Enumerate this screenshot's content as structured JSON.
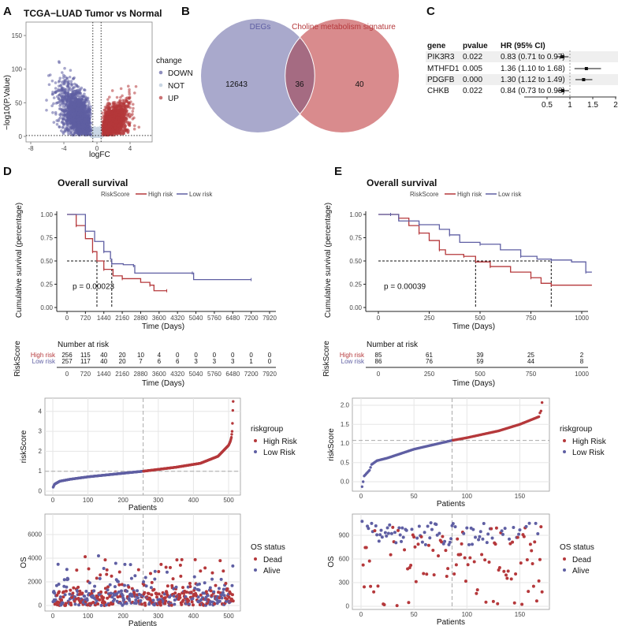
{
  "colors": {
    "low": "#5f5fa3",
    "high": "#b5383b",
    "not": "#c9d6e3",
    "venn_left": "#a9a9cc",
    "venn_right": "#d98b8d",
    "venn_overlap": "#a56b82",
    "band": "#efefef"
  },
  "panels": {
    "A": "A",
    "B": "B",
    "C": "C",
    "D": "D",
    "E": "E"
  },
  "chart_data": [
    {
      "id": "A",
      "type": "scatter",
      "title": "TCGA−LUAD Tumor vs Normal",
      "xlabel": "logFC",
      "ylabel": "−log10(P.Value)",
      "xticks": [
        "-8",
        "-4",
        "0",
        "4"
      ],
      "yticks": [
        "0",
        "50",
        "100",
        "150"
      ],
      "xlim": [
        -8.5,
        6.5
      ],
      "ylim": [
        -5,
        170
      ],
      "thresholds": {
        "logFC": [
          -0.5,
          0.5
        ],
        "neglog10p": 1.3
      },
      "legend": {
        "title": "change",
        "items": [
          "DOWN",
          "NOT",
          "UP"
        ]
      }
    },
    {
      "id": "B",
      "type": "venn",
      "sets": [
        "DEGs",
        "Choline metabolism signature"
      ],
      "counts": {
        "left_only": "12643",
        "overlap": "36",
        "right_only": "40"
      }
    },
    {
      "id": "C",
      "type": "forest",
      "headers": [
        "gene",
        "pvalue",
        "HR (95% CI)"
      ],
      "rows": [
        {
          "gene": "PIK3R3",
          "pvalue": "0.022",
          "hr_text": "0.83 (0.71 to 0.97)",
          "hr": 0.83,
          "lo": 0.71,
          "hi": 0.97
        },
        {
          "gene": "MTHFD1",
          "pvalue": "0.005",
          "hr_text": "1.36 (1.10 to 1.68)",
          "hr": 1.36,
          "lo": 1.1,
          "hi": 1.68
        },
        {
          "gene": "PDGFB",
          "pvalue": "0.000",
          "hr_text": "1.30 (1.12 to 1.49)",
          "hr": 1.3,
          "lo": 1.12,
          "hi": 1.49
        },
        {
          "gene": "CHKB",
          "pvalue": "0.022",
          "hr_text": "0.84 (0.73 to 0.98)",
          "hr": 0.84,
          "lo": 0.73,
          "hi": 0.98
        }
      ],
      "xticks": [
        "0.5",
        "1",
        "1.5",
        "2"
      ],
      "xlim": [
        0.5,
        2
      ],
      "reference": 1
    },
    {
      "id": "D-km",
      "type": "line",
      "title": "Overall survival",
      "legend_title": "RiskScore",
      "legend": [
        "High risk",
        "Low risk"
      ],
      "xlabel": "Time (Days)",
      "ylabel": "Cumulative survival (percentage)",
      "xticks": [
        "0",
        "720",
        "1440",
        "2160",
        "2880",
        "3600",
        "4320",
        "5040",
        "5760",
        "6480",
        "7200",
        "7920"
      ],
      "yticks": [
        "0.00",
        "0.25",
        "0.50",
        "0.75",
        "1.00"
      ],
      "xlim": [
        0,
        7920
      ],
      "ylim": [
        0,
        1
      ],
      "pvalue": "p = 0.00023",
      "medians": [
        1170,
        1750
      ],
      "series": [
        {
          "name": "High risk",
          "x": [
            0,
            360,
            720,
            1000,
            1170,
            1440,
            1800,
            2160,
            2880,
            3240,
            3400,
            3900
          ],
          "y": [
            1,
            0.88,
            0.74,
            0.6,
            0.5,
            0.41,
            0.34,
            0.31,
            0.27,
            0.24,
            0.18,
            0.18
          ]
        },
        {
          "name": "Low risk",
          "x": [
            0,
            720,
            1080,
            1440,
            1700,
            1750,
            2200,
            2600,
            2650,
            4900,
            4950,
            7200
          ],
          "y": [
            1,
            0.82,
            0.71,
            0.6,
            0.52,
            0.47,
            0.46,
            0.45,
            0.37,
            0.37,
            0.3,
            0.3
          ]
        }
      ],
      "risk_table": {
        "title": "Number at risk",
        "ylabel": "RiskScore",
        "xlabel": "Time (Days)",
        "rows": [
          {
            "name": "High risk",
            "values": [
              "256",
              "115",
              "40",
              "20",
              "10",
              "4",
              "0",
              "0",
              "0",
              "0",
              "0",
              "0"
            ]
          },
          {
            "name": "Low risk",
            "values": [
              "257",
              "117",
              "40",
              "20",
              "7",
              "6",
              "6",
              "3",
              "3",
              "3",
              "1",
              "0"
            ]
          }
        ]
      }
    },
    {
      "id": "E-km",
      "type": "line",
      "title": "Overall survival",
      "legend_title": "RiskScore",
      "legend": [
        "High risk",
        "Low risk"
      ],
      "xlabel": "Time (Days)",
      "ylabel": "Cumulative survival (percentage)",
      "xticks": [
        "0",
        "250",
        "500",
        "750",
        "1000"
      ],
      "yticks": [
        "0.00",
        "0.25",
        "0.50",
        "0.75",
        "1.00"
      ],
      "xlim": [
        0,
        1050
      ],
      "ylim": [
        0,
        1
      ],
      "pvalue": "p = 0.00039",
      "medians": [
        478,
        850
      ],
      "series": [
        {
          "name": "High risk",
          "x": [
            0,
            100,
            150,
            200,
            250,
            300,
            330,
            420,
            478,
            550,
            650,
            750,
            800,
            850,
            1050
          ],
          "y": [
            1,
            0.96,
            0.88,
            0.8,
            0.72,
            0.62,
            0.57,
            0.55,
            0.49,
            0.44,
            0.38,
            0.32,
            0.26,
            0.24,
            0.24
          ]
        },
        {
          "name": "Low risk",
          "x": [
            0,
            60,
            100,
            200,
            300,
            350,
            400,
            500,
            600,
            700,
            780,
            850,
            950,
            1020,
            1050
          ],
          "y": [
            1,
            1,
            0.93,
            0.89,
            0.84,
            0.78,
            0.7,
            0.68,
            0.62,
            0.55,
            0.52,
            0.51,
            0.49,
            0.38,
            0.38
          ]
        }
      ],
      "risk_table": {
        "title": "Number at risk",
        "ylabel": "RiskScore",
        "xlabel": "Time (Days)",
        "rows": [
          {
            "name": "High risk",
            "values": [
              "85",
              "61",
              "39",
              "25",
              "2"
            ]
          },
          {
            "name": "Low risk",
            "values": [
              "86",
              "76",
              "59",
              "44",
              "8"
            ]
          }
        ]
      }
    },
    {
      "id": "D-risk",
      "type": "scatter",
      "xlabel": "Patients",
      "ylabel": "riskScore",
      "xticks": [
        "0",
        "100",
        "200",
        "300",
        "400",
        "500"
      ],
      "yticks": [
        "0",
        "1",
        "2",
        "3",
        "4"
      ],
      "n": 513,
      "cutoff_patient": 257,
      "cutoff_score": 1,
      "curve": {
        "patient": [
          1,
          5,
          20,
          50,
          100,
          200,
          257,
          350,
          420,
          470,
          500,
          505,
          508,
          510,
          511,
          512,
          513
        ],
        "riskScore": [
          0.2,
          0.35,
          0.5,
          0.6,
          0.72,
          0.9,
          1.0,
          1.2,
          1.4,
          1.75,
          2.3,
          2.5,
          2.7,
          3.0,
          3.4,
          4.05,
          4.5
        ]
      },
      "legend": {
        "title": "riskgroup",
        "items": [
          "High Risk",
          "Low Risk"
        ]
      }
    },
    {
      "id": "D-os",
      "type": "scatter",
      "xlabel": "Patients",
      "ylabel": "OS",
      "xticks": [
        "0",
        "100",
        "200",
        "300",
        "400",
        "500"
      ],
      "yticks": [
        "0",
        "2000",
        "4000",
        "6000"
      ],
      "n": 513,
      "cutoff_patient": 257,
      "legend": {
        "title": "OS status",
        "items": [
          "Dead",
          "Alive"
        ]
      }
    },
    {
      "id": "E-risk",
      "type": "scatter",
      "xlabel": "Patients",
      "ylabel": "riskScore",
      "xticks": [
        "0",
        "50",
        "100",
        "150"
      ],
      "yticks": [
        "0.0",
        "0.5",
        "1.0",
        "1.5",
        "2.0"
      ],
      "n": 171,
      "cutoff_patient": 86,
      "cutoff_score": 1.08,
      "curve": {
        "patient": [
          1,
          2,
          3,
          8,
          10,
          15,
          25,
          50,
          86,
          100,
          130,
          150,
          168,
          169,
          170,
          171
        ],
        "riskScore": [
          -0.13,
          0,
          0.15,
          0.3,
          0.45,
          0.55,
          0.62,
          0.85,
          1.08,
          1.15,
          1.33,
          1.5,
          1.7,
          1.8,
          1.85,
          2.07
        ]
      },
      "legend": {
        "title": "riskgroup",
        "items": [
          "High Risk",
          "Low Risk"
        ]
      }
    },
    {
      "id": "E-os",
      "type": "scatter",
      "xlabel": "Patients",
      "ylabel": "OS",
      "xticks": [
        "0",
        "50",
        "100",
        "150"
      ],
      "yticks": [
        "0",
        "300",
        "600",
        "900"
      ],
      "n": 171,
      "cutoff_patient": 86,
      "legend": {
        "title": "OS status",
        "items": [
          "Dead",
          "Alive"
        ]
      }
    }
  ]
}
